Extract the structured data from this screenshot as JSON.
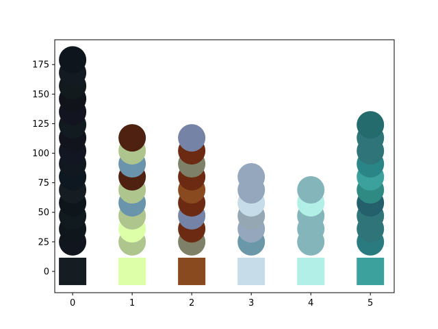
{
  "chart_data": {
    "type": "scatter",
    "title": "",
    "xlabel": "",
    "ylabel": "",
    "xlim": [
      -0.3,
      5.4
    ],
    "ylim": [
      -18,
      196
    ],
    "xticks": [
      0,
      1,
      2,
      3,
      4,
      5
    ],
    "xtick_labels": [
      "0",
      "1",
      "2",
      "3",
      "4",
      "5"
    ],
    "yticks": [
      0,
      25,
      50,
      75,
      100,
      125,
      150,
      175
    ],
    "ytick_labels": [
      "0",
      "25",
      "50",
      "75",
      "100",
      "125",
      "150",
      "175"
    ],
    "grid": false,
    "legend": "none",
    "swatches": [
      {
        "x": 0,
        "y": 0,
        "color": "#151d22"
      },
      {
        "x": 1,
        "y": 0,
        "color": "#dcffa8"
      },
      {
        "x": 2,
        "y": 0,
        "color": "#8a4a1f"
      },
      {
        "x": 3,
        "y": 0,
        "color": "#c6dce8"
      },
      {
        "x": 4,
        "y": 0,
        "color": "#b1efe7"
      },
      {
        "x": 5,
        "y": 0,
        "color": "#3ca19d"
      }
    ],
    "points": [
      {
        "x": 0,
        "y": 25,
        "color": "#11151d"
      },
      {
        "x": 0,
        "y": 36,
        "color": "#0f171c"
      },
      {
        "x": 0,
        "y": 47,
        "color": "#111a1e"
      },
      {
        "x": 0,
        "y": 58,
        "color": "#0e161b"
      },
      {
        "x": 0,
        "y": 69,
        "color": "#151d22"
      },
      {
        "x": 0,
        "y": 80,
        "color": "#0d1820"
      },
      {
        "x": 0,
        "y": 91,
        "color": "#11181f"
      },
      {
        "x": 0,
        "y": 102,
        "color": "#121622"
      },
      {
        "x": 0,
        "y": 113,
        "color": "#11141d"
      },
      {
        "x": 0,
        "y": 124,
        "color": "#121b20"
      },
      {
        "x": 0,
        "y": 135,
        "color": "#12141f"
      },
      {
        "x": 0,
        "y": 146,
        "color": "#11131b"
      },
      {
        "x": 0,
        "y": 157,
        "color": "#121a1e"
      },
      {
        "x": 0,
        "y": 168,
        "color": "#131a22"
      },
      {
        "x": 0,
        "y": 179,
        "color": "#0f151c"
      },
      {
        "x": 1,
        "y": 25,
        "color": "#aec58e"
      },
      {
        "x": 1,
        "y": 36,
        "color": "#dcffa8"
      },
      {
        "x": 1,
        "y": 47,
        "color": "#aec58e"
      },
      {
        "x": 1,
        "y": 58,
        "color": "#6a94ab"
      },
      {
        "x": 1,
        "y": 69,
        "color": "#aec58e"
      },
      {
        "x": 1,
        "y": 80,
        "color": "#4f2111"
      },
      {
        "x": 1,
        "y": 91,
        "color": "#6a94ab"
      },
      {
        "x": 1,
        "y": 102,
        "color": "#aec58e"
      },
      {
        "x": 1,
        "y": 113,
        "color": "#4f2111"
      },
      {
        "x": 2,
        "y": 25,
        "color": "#7e8068"
      },
      {
        "x": 2,
        "y": 36,
        "color": "#6c2a12"
      },
      {
        "x": 2,
        "y": 47,
        "color": "#7584a6"
      },
      {
        "x": 2,
        "y": 58,
        "color": "#6c2a12"
      },
      {
        "x": 2,
        "y": 69,
        "color": "#8a4a1f"
      },
      {
        "x": 2,
        "y": 80,
        "color": "#6c2a12"
      },
      {
        "x": 2,
        "y": 91,
        "color": "#7e8068"
      },
      {
        "x": 2,
        "y": 102,
        "color": "#6c2a12"
      },
      {
        "x": 2,
        "y": 113,
        "color": "#7584a6"
      },
      {
        "x": 3,
        "y": 25,
        "color": "#6a98a8"
      },
      {
        "x": 3,
        "y": 36,
        "color": "#94a7bd"
      },
      {
        "x": 3,
        "y": 47,
        "color": "#94a7b3"
      },
      {
        "x": 3,
        "y": 58,
        "color": "#c6dce8"
      },
      {
        "x": 3,
        "y": 69,
        "color": "#94a7bd"
      },
      {
        "x": 3,
        "y": 80,
        "color": "#94a7bd"
      },
      {
        "x": 4,
        "y": 25,
        "color": "#84b5ba"
      },
      {
        "x": 4,
        "y": 36,
        "color": "#84b5ba"
      },
      {
        "x": 4,
        "y": 47,
        "color": "#84b5ba"
      },
      {
        "x": 4,
        "y": 58,
        "color": "#b1efe7"
      },
      {
        "x": 4,
        "y": 69,
        "color": "#84b5ba"
      },
      {
        "x": 5,
        "y": 25,
        "color": "#2a7b7f"
      },
      {
        "x": 5,
        "y": 36,
        "color": "#2f7478"
      },
      {
        "x": 5,
        "y": 47,
        "color": "#2f7478"
      },
      {
        "x": 5,
        "y": 58,
        "color": "#245f6c"
      },
      {
        "x": 5,
        "y": 69,
        "color": "#2f8a84"
      },
      {
        "x": 5,
        "y": 80,
        "color": "#3ca19d"
      },
      {
        "x": 5,
        "y": 91,
        "color": "#2a8587"
      },
      {
        "x": 5,
        "y": 102,
        "color": "#2f7478"
      },
      {
        "x": 5,
        "y": 113,
        "color": "#2f7478"
      },
      {
        "x": 5,
        "y": 124,
        "color": "#236b6d"
      }
    ]
  }
}
